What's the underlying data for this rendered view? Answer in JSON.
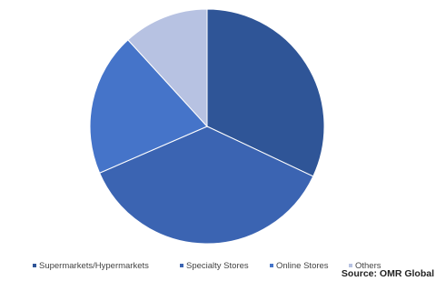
{
  "chart_data": {
    "type": "pie",
    "categories": [
      "Supermarkets/Hypermarkets",
      "Specialty Stores",
      "Online Stores",
      "Others"
    ],
    "values": [
      32,
      36.5,
      19.7,
      11.8
    ],
    "colors": [
      "#2f5597",
      "#3b64b2",
      "#4574c9",
      "#b7c2e2"
    ],
    "source": "Source: OMR Global"
  }
}
